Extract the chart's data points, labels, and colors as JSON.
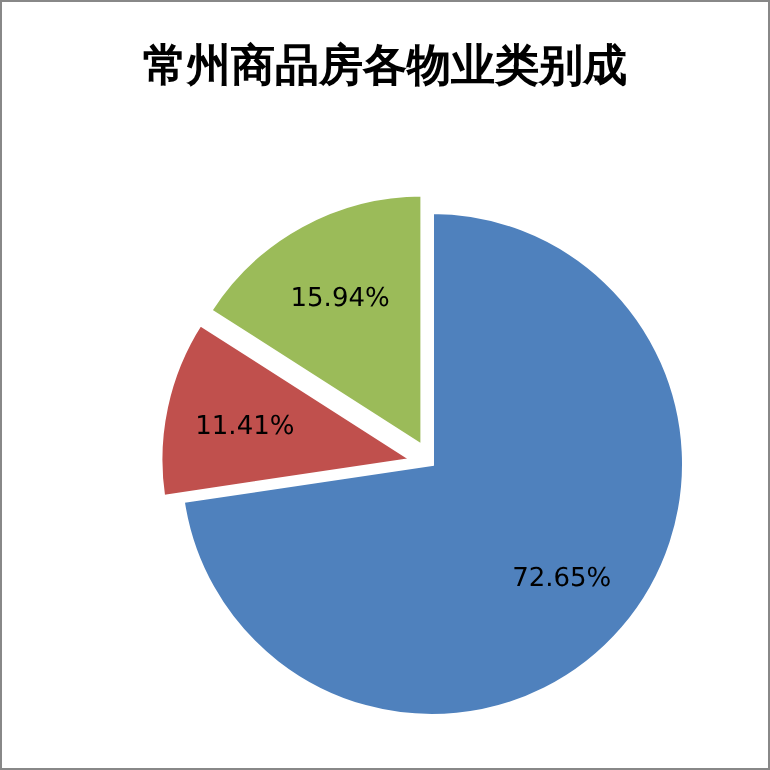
{
  "chart_data": {
    "type": "pie",
    "title": "常州商品房各物业类别成",
    "categories": [
      null,
      null,
      null
    ],
    "values": [
      72.65,
      11.41,
      15.94
    ],
    "colors": [
      "#4f81bd",
      "#c0504d",
      "#9bbb59"
    ],
    "value_labels": [
      "72.65%",
      "11.41%",
      "15.94%"
    ]
  }
}
